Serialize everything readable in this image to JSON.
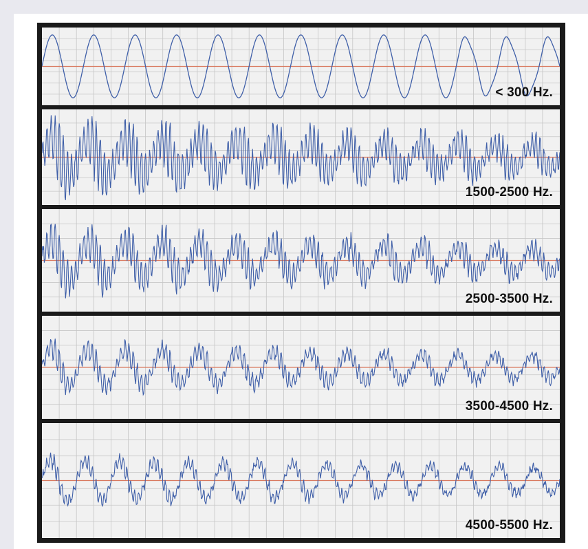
{
  "chart_data": {
    "type": "line",
    "title": "",
    "colors": {
      "trace": "#3f5fa8",
      "baseline": "#d9785e",
      "grid": "#c6c6c6",
      "frame": "#1a1a1a",
      "panel_bg": "#f1f1f1"
    },
    "grid": true,
    "panels": [
      {
        "label": "< 300 Hz.",
        "cycles": 12.5,
        "amplitude": 0.9,
        "noise": 0.0,
        "burst": 0.0
      },
      {
        "label": "1500-2500 Hz.",
        "cycles": 14,
        "amplitude": 0.95,
        "noise": 0.9,
        "burst": 1.0
      },
      {
        "label": "2500-3500 Hz.",
        "cycles": 14,
        "amplitude": 0.95,
        "noise": 0.75,
        "burst": 0.8
      },
      {
        "label": "3500-4500 Hz.",
        "cycles": 14,
        "amplitude": 0.9,
        "noise": 0.6,
        "burst": 0.6
      },
      {
        "label": "4500-5500 Hz.",
        "cycles": 15,
        "amplitude": 0.9,
        "noise": 0.5,
        "burst": 0.45
      }
    ]
  }
}
